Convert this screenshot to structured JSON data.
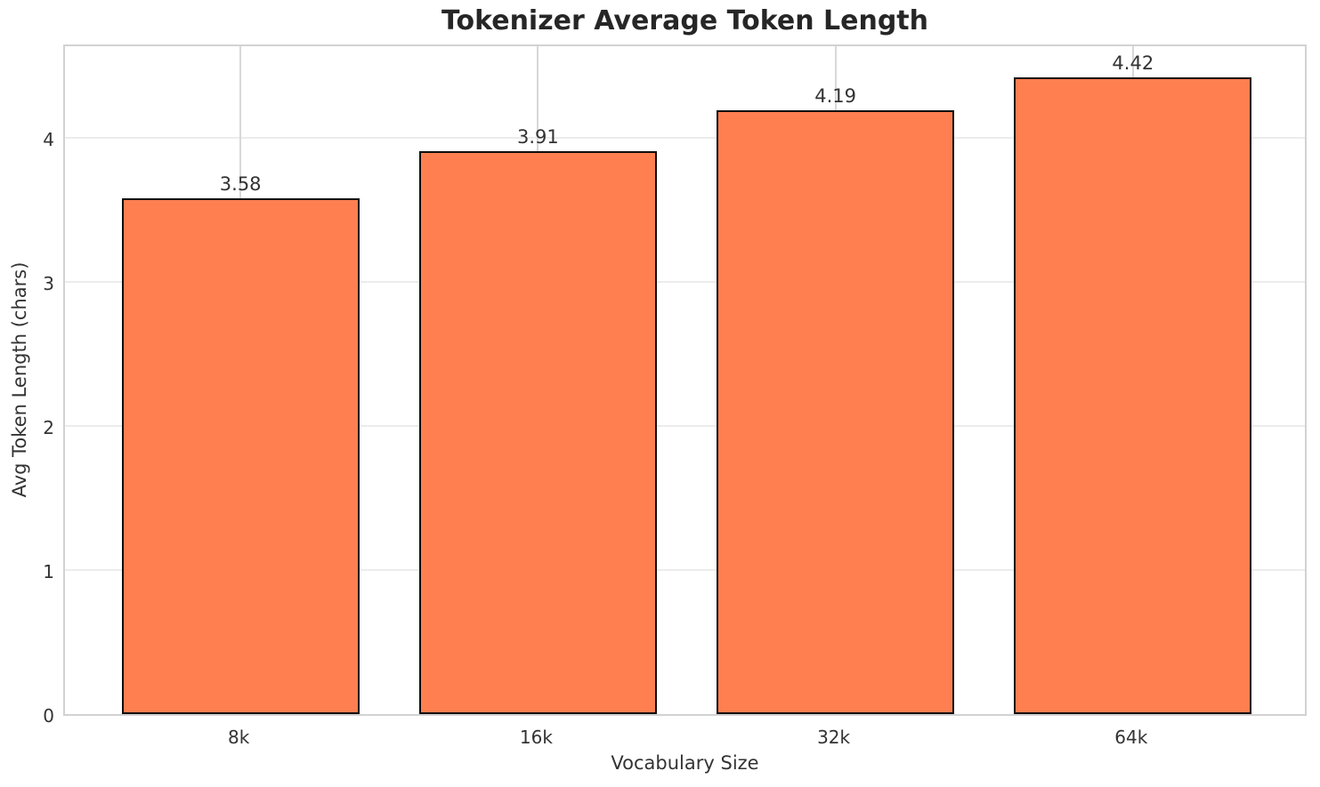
{
  "chart_data": {
    "type": "bar",
    "title": "Tokenizer Average Token Length",
    "xlabel": "Vocabulary Size",
    "ylabel": "Avg Token Length (chars)",
    "categories": [
      "8k",
      "16k",
      "32k",
      "64k"
    ],
    "values": [
      3.58,
      3.91,
      4.19,
      4.42
    ],
    "value_labels": [
      "3.58",
      "3.91",
      "4.19",
      "4.42"
    ],
    "ytick_labels": [
      "0",
      "1",
      "2",
      "3",
      "4"
    ],
    "ytick_values": [
      0,
      1,
      2,
      3,
      4
    ],
    "ylim": [
      0,
      4.66
    ],
    "xlim": [
      -0.59,
      3.59
    ],
    "bar_width_units": 0.8,
    "grid": true,
    "legend": "none",
    "colors": {
      "bar_fill": "#FF7F50",
      "bar_edge": "#0d0d0d",
      "grid_horizontal": "#ececec",
      "grid_vertical": "#d8d8d8",
      "spine": "#d2d2d2",
      "title_text": "#262626",
      "text": "#333333",
      "background": "#ffffff"
    }
  }
}
